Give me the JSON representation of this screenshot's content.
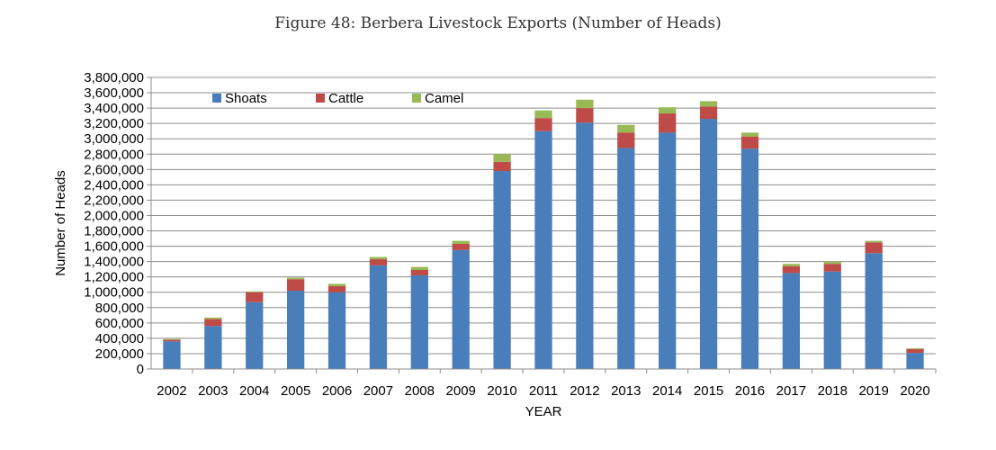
{
  "figure_title": "Figure 48: Berbera Livestock Exports (Number of Heads)",
  "chart_data": {
    "type": "bar",
    "stacked": true,
    "title": "",
    "xlabel": "YEAR",
    "ylabel": "Number of Heads",
    "ylim": [
      0,
      3800000
    ],
    "ytick_step": 200000,
    "grid": true,
    "legend_position": "top-left",
    "categories": [
      "2002",
      "2003",
      "2004",
      "2005",
      "2006",
      "2007",
      "2008",
      "2009",
      "2010",
      "2011",
      "2012",
      "2013",
      "2014",
      "2015",
      "2016",
      "2017",
      "2018",
      "2019",
      "2020"
    ],
    "series": [
      {
        "name": "Shoats",
        "color": "#4a7ebb",
        "values": [
          360000,
          560000,
          870000,
          1020000,
          1000000,
          1350000,
          1220000,
          1550000,
          2580000,
          3100000,
          3210000,
          2880000,
          3080000,
          3260000,
          2870000,
          1250000,
          1270000,
          1510000,
          210000
        ]
      },
      {
        "name": "Cattle",
        "color": "#be4b48",
        "values": [
          20000,
          90000,
          130000,
          150000,
          80000,
          80000,
          70000,
          80000,
          120000,
          170000,
          190000,
          200000,
          250000,
          160000,
          160000,
          90000,
          100000,
          140000,
          50000
        ]
      },
      {
        "name": "Camel",
        "color": "#98b954",
        "values": [
          10000,
          20000,
          10000,
          20000,
          30000,
          30000,
          40000,
          40000,
          100000,
          100000,
          110000,
          100000,
          80000,
          70000,
          50000,
          30000,
          30000,
          20000,
          10000
        ]
      }
    ]
  }
}
